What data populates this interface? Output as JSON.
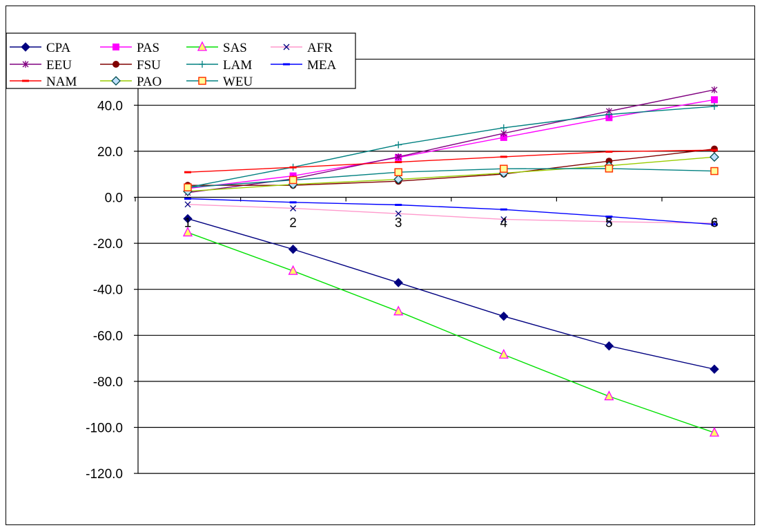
{
  "chart_data": {
    "type": "line",
    "title": "",
    "xlabel": "",
    "ylabel": "",
    "x": [
      1,
      2,
      3,
      4,
      5,
      6
    ],
    "x_tick_labels": [
      "1",
      "2",
      "3",
      "4",
      "5",
      "6"
    ],
    "ylim": [
      -120,
      60
    ],
    "y_ticks": [
      40,
      20,
      0,
      -20,
      -40,
      -60,
      -80,
      -100,
      -120
    ],
    "y_tick_labels": [
      "40.0",
      "20.0",
      "0.0",
      "-20.0",
      "-40.0",
      "-60.0",
      "-80.0",
      "-100.0",
      "-120.0"
    ],
    "grid": "horizontal",
    "legend_position": "top-left",
    "series": [
      {
        "name": "CPA",
        "color": "#000080",
        "marker": "diamond-filled",
        "values": [
          -9.3,
          -22.6,
          -37.1,
          -51.7,
          -64.6,
          -74.7
        ]
      },
      {
        "name": "PAS",
        "color": "#ff00ff",
        "marker": "square-filled",
        "values": [
          3.8,
          9.3,
          17.3,
          26.0,
          34.6,
          42.4
        ]
      },
      {
        "name": "SAS",
        "color": "#00e000",
        "marker": "triangle-open",
        "values": [
          -15.3,
          -32.0,
          -49.6,
          -68.4,
          -86.5,
          -102.3
        ]
      },
      {
        "name": "AFR",
        "color": "#ff99cc",
        "marker": "x",
        "values": [
          -3.1,
          -4.8,
          -7.1,
          -9.6,
          -10.6,
          -11.3
        ]
      },
      {
        "name": "EEU",
        "color": "#800080",
        "marker": "star",
        "values": [
          2.0,
          8.0,
          17.6,
          27.8,
          37.4,
          46.7
        ]
      },
      {
        "name": "FSU",
        "color": "#800000",
        "marker": "circle-filled",
        "values": [
          5.2,
          5.2,
          7.0,
          10.1,
          15.7,
          21.0
        ]
      },
      {
        "name": "LAM",
        "color": "#008080",
        "marker": "plus",
        "values": [
          4.3,
          13.1,
          22.8,
          30.2,
          36.0,
          39.5
        ]
      },
      {
        "name": "MEA",
        "color": "#0000ff",
        "marker": "dash",
        "values": [
          -0.6,
          -2.2,
          -3.3,
          -5.3,
          -8.4,
          -11.8
        ]
      },
      {
        "name": "NAM",
        "color": "#ff0000",
        "marker": "dash",
        "values": [
          10.9,
          13.0,
          15.3,
          17.6,
          19.8,
          20.5
        ]
      },
      {
        "name": "PAO",
        "color": "#99cc00",
        "marker": "diamond-open",
        "values": [
          2.6,
          5.6,
          7.8,
          10.5,
          13.7,
          17.5
        ]
      },
      {
        "name": "WEU",
        "color": "#008080",
        "marker": "square-open",
        "values": [
          4.3,
          7.5,
          10.9,
          12.4,
          12.5,
          11.4
        ]
      }
    ]
  }
}
